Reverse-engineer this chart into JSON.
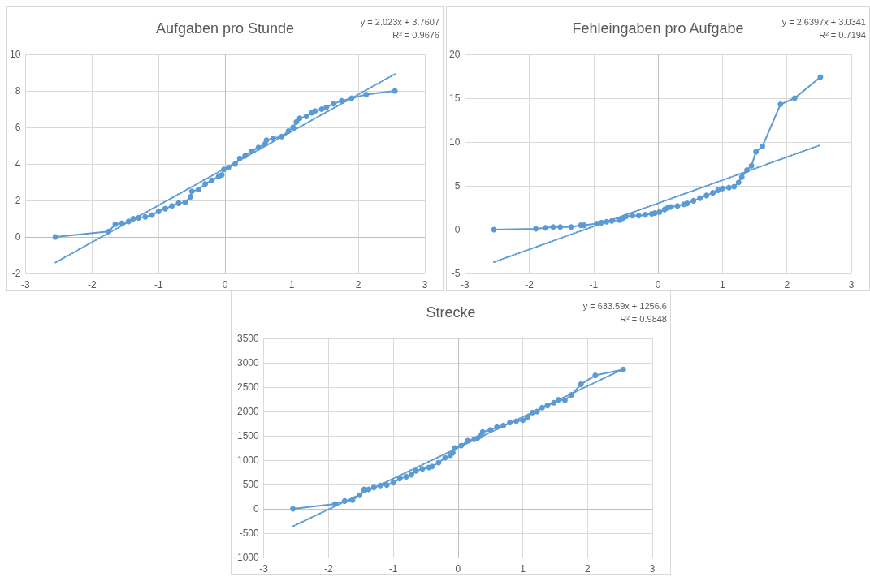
{
  "chart_data": [
    {
      "type": "line",
      "title": "Aufgaben pro Stunde",
      "annotations": [
        "y = 2.023x + 3.7607",
        "R² = 0.9676"
      ],
      "xlim": [
        -3,
        3
      ],
      "xticks": [
        -3,
        -2,
        -1,
        0,
        1,
        2,
        3
      ],
      "ylim": [
        -2,
        10
      ],
      "yticks": [
        -2,
        0,
        2,
        4,
        6,
        8,
        10
      ],
      "grid": true,
      "series": [
        {
          "color": "#5b9bd5",
          "marker": "circle",
          "line_style": "solid",
          "x": [
            -2.55,
            -1.75,
            -1.65,
            -1.55,
            -1.45,
            -1.38,
            -1.3,
            -1.2,
            -1.1,
            -1.0,
            -0.9,
            -0.8,
            -0.7,
            -0.6,
            -0.52,
            -0.5,
            -0.4,
            -0.3,
            -0.2,
            -0.1,
            -0.05,
            -0.02,
            0.05,
            0.15,
            0.22,
            0.3,
            0.4,
            0.5,
            0.6,
            0.62,
            0.72,
            0.85,
            0.95,
            1.02,
            1.07,
            1.12,
            1.22,
            1.3,
            1.35,
            1.45,
            1.52,
            1.63,
            1.75,
            1.9,
            2.12,
            2.55
          ],
          "values": [
            0,
            0.3,
            0.7,
            0.75,
            0.85,
            1.0,
            1.05,
            1.1,
            1.2,
            1.4,
            1.55,
            1.7,
            1.85,
            1.9,
            2.2,
            2.5,
            2.6,
            2.9,
            3.1,
            3.3,
            3.4,
            3.7,
            3.8,
            4.0,
            4.3,
            4.45,
            4.7,
            4.9,
            5.1,
            5.3,
            5.4,
            5.5,
            5.8,
            6.0,
            6.3,
            6.5,
            6.6,
            6.8,
            6.9,
            7.0,
            7.1,
            7.3,
            7.45,
            7.6,
            7.8,
            8.0
          ]
        },
        {
          "color": "#5b9bd5",
          "marker": "none",
          "line_style": "dotted",
          "x": [
            -2.55,
            2.55
          ],
          "values": [
            -1.4,
            8.92
          ]
        }
      ]
    },
    {
      "type": "line",
      "title": "Fehleingaben pro Aufgabe",
      "annotations": [
        "y = 2.6397x + 3.0341",
        "R² = 0.7194"
      ],
      "xlim": [
        -3,
        3
      ],
      "xticks": [
        -3,
        -2,
        -1,
        0,
        1,
        2,
        3
      ],
      "ylim": [
        -5,
        20
      ],
      "yticks": [
        -5,
        0,
        5,
        10,
        15,
        20
      ],
      "grid": true,
      "series": [
        {
          "color": "#5b9bd5",
          "marker": "circle",
          "line_style": "solid",
          "x": [
            -2.55,
            -1.9,
            -1.75,
            -1.63,
            -1.52,
            -1.35,
            -1.2,
            -1.15,
            -0.95,
            -0.88,
            -0.8,
            -0.72,
            -0.6,
            -0.55,
            -0.5,
            -0.4,
            -0.3,
            -0.2,
            -0.1,
            -0.05,
            0.02,
            0.1,
            0.15,
            0.2,
            0.3,
            0.4,
            0.45,
            0.55,
            0.65,
            0.75,
            0.85,
            0.93,
            1.0,
            1.1,
            1.18,
            1.25,
            1.3,
            1.38,
            1.45,
            1.52,
            1.62,
            1.9,
            2.12,
            2.52
          ],
          "values": [
            0,
            0.1,
            0.2,
            0.3,
            0.3,
            0.3,
            0.5,
            0.5,
            0.7,
            0.8,
            0.9,
            1.0,
            1.1,
            1.3,
            1.5,
            1.6,
            1.6,
            1.7,
            1.8,
            1.9,
            2.0,
            2.3,
            2.5,
            2.6,
            2.7,
            2.9,
            3.0,
            3.3,
            3.6,
            3.9,
            4.2,
            4.5,
            4.7,
            4.8,
            4.9,
            5.4,
            6.0,
            6.8,
            7.3,
            8.9,
            9.5,
            14.3,
            15.0,
            17.4
          ]
        },
        {
          "color": "#5b9bd5",
          "marker": "none",
          "line_style": "dotted",
          "x": [
            -2.55,
            2.5
          ],
          "values": [
            -3.7,
            9.6
          ]
        }
      ]
    },
    {
      "type": "line",
      "title": "Strecke",
      "annotations": [
        "y = 633.59x + 1256.6",
        "R² = 0.9848"
      ],
      "xlim": [
        -3,
        3
      ],
      "xticks": [
        -3,
        -2,
        -1,
        0,
        1,
        2,
        3
      ],
      "ylim": [
        -1000,
        3500
      ],
      "yticks": [
        -1000,
        -500,
        0,
        500,
        1000,
        1500,
        2000,
        2500,
        3000,
        3500
      ],
      "grid": true,
      "series": [
        {
          "color": "#5b9bd5",
          "marker": "circle",
          "line_style": "solid",
          "x": [
            -2.55,
            -1.9,
            -1.75,
            -1.63,
            -1.52,
            -1.45,
            -1.38,
            -1.3,
            -1.2,
            -1.1,
            -1.0,
            -0.9,
            -0.8,
            -0.72,
            -0.65,
            -0.55,
            -0.45,
            -0.4,
            -0.3,
            -0.2,
            -0.12,
            -0.08,
            -0.05,
            0.05,
            0.15,
            0.25,
            0.3,
            0.35,
            0.38,
            0.5,
            0.6,
            0.7,
            0.8,
            0.9,
            1.0,
            1.07,
            1.15,
            1.22,
            1.3,
            1.38,
            1.48,
            1.55,
            1.65,
            1.75,
            1.9,
            2.12,
            2.55
          ],
          "values": [
            0,
            100,
            160,
            180,
            280,
            400,
            400,
            440,
            480,
            490,
            540,
            620,
            660,
            700,
            780,
            820,
            850,
            870,
            950,
            1050,
            1100,
            1150,
            1250,
            1300,
            1400,
            1430,
            1450,
            1500,
            1580,
            1620,
            1680,
            1710,
            1770,
            1800,
            1820,
            1880,
            1980,
            2000,
            2080,
            2120,
            2180,
            2240,
            2230,
            2340,
            2560,
            2740,
            2860
          ]
        },
        {
          "color": "#5b9bd5",
          "marker": "none",
          "line_style": "dotted",
          "x": [
            -2.55,
            2.55
          ],
          "values": [
            -360,
            2870
          ]
        }
      ]
    }
  ]
}
